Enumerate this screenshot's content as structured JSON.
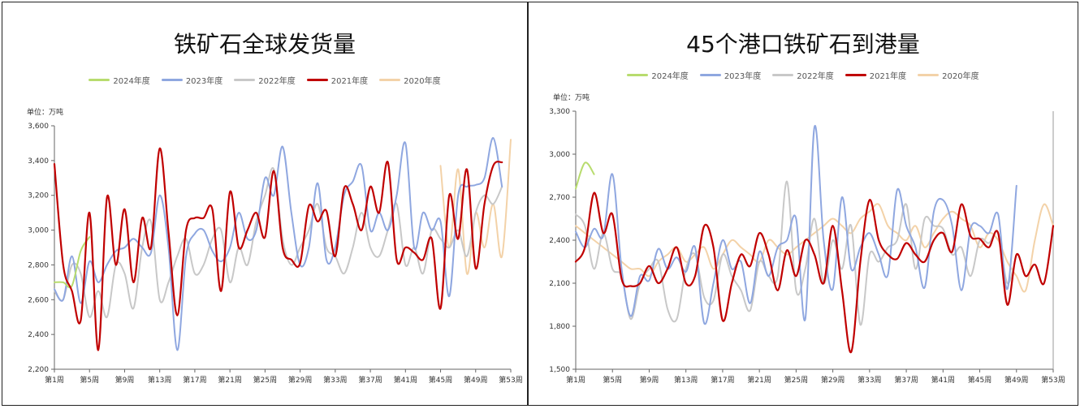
{
  "chart_data": [
    {
      "type": "line",
      "title": "铁矿石全球发货量",
      "unit_label": "单位：万吨",
      "ylim": [
        2200,
        3600
      ],
      "yticks": [
        "2,200",
        "2,400",
        "2,600",
        "2,800",
        "3,000",
        "3,200",
        "3,400",
        "3,600"
      ],
      "ytick_values": [
        2200,
        2400,
        2600,
        2800,
        3000,
        3200,
        3400,
        3600
      ],
      "xlim": [
        1,
        53
      ],
      "xticks": [
        "第1周",
        "第5周",
        "第9周",
        "第13周",
        "第17周",
        "第21周",
        "第25周",
        "第29周",
        "第33周",
        "第37周",
        "第41周",
        "第45周",
        "第49周",
        "第53周"
      ],
      "xtick_values": [
        1,
        5,
        9,
        13,
        17,
        21,
        25,
        29,
        33,
        37,
        41,
        45,
        49,
        53
      ],
      "legend_position": "top",
      "series": [
        {
          "name": "2024年度",
          "color": "#b8dc6e",
          "width": 2,
          "values": [
            2700,
            2700,
            2680,
            2880,
            2960
          ]
        },
        {
          "name": "2023年度",
          "color": "#8fa7e0",
          "width": 2,
          "values": [
            2660,
            2600,
            2850,
            2580,
            2820,
            2700,
            2800,
            2880,
            2900,
            2950,
            2900,
            2870,
            3200,
            2900,
            2310,
            2850,
            2980,
            3000,
            2880,
            2820,
            2900,
            3100,
            2950,
            3000,
            3300,
            3200,
            3480,
            3100,
            2800,
            2900,
            3270,
            2830,
            2900,
            3200,
            3280,
            3370,
            3000,
            3100,
            3000,
            3200,
            3500,
            2900,
            3100,
            3000,
            3050,
            2620,
            3200,
            3250,
            3260,
            3300,
            3530,
            3250
          ]
        },
        {
          "name": "2022年度",
          "color": "#c8c8c8",
          "width": 2,
          "values": [
            2650,
            2600,
            2800,
            2750,
            2500,
            2650,
            2500,
            2800,
            2750,
            2550,
            2900,
            3050,
            2600,
            2700,
            2850,
            2950,
            2750,
            2800,
            2950,
            3000,
            2700,
            2900,
            2800,
            3050,
            3200,
            3350,
            2950,
            2800,
            2900,
            3000,
            3150,
            2900,
            2850,
            2750,
            2900,
            3100,
            2900,
            2850,
            3000,
            3150,
            2800,
            2900,
            2750,
            3000,
            2950,
            2900,
            3000,
            2850,
            3100,
            3200,
            3150,
            3250
          ]
        },
        {
          "name": "2021年度",
          "color": "#c00000",
          "width": 2.2,
          "values": [
            3380,
            2800,
            2650,
            2480,
            3100,
            2310,
            3190,
            2800,
            3120,
            2700,
            3070,
            2900,
            3470,
            2990,
            2510,
            3000,
            3070,
            3070,
            3120,
            2650,
            3220,
            2900,
            3000,
            3100,
            2960,
            3340,
            2900,
            2830,
            2810,
            3140,
            3050,
            3110,
            2850,
            3240,
            3150,
            3000,
            3250,
            3100,
            3390,
            2830,
            2900,
            2870,
            2830,
            2950,
            2550,
            3200,
            2950,
            3350,
            2780,
            3150,
            3370,
            3390
          ]
        },
        {
          "name": "2020年度",
          "color": "#f3d2a8",
          "width": 2,
          "values": [
            null,
            null,
            null,
            null,
            null,
            null,
            null,
            null,
            null,
            null,
            null,
            null,
            null,
            null,
            null,
            null,
            null,
            null,
            null,
            null,
            null,
            null,
            null,
            null,
            null,
            null,
            null,
            null,
            null,
            null,
            null,
            null,
            null,
            null,
            null,
            null,
            null,
            null,
            null,
            null,
            null,
            null,
            null,
            null,
            3370,
            2900,
            3350,
            2750,
            3100,
            2900,
            3150,
            2850,
            3520
          ]
        }
      ]
    },
    {
      "type": "line",
      "title": "45个港口铁矿石到港量",
      "unit_label": "单位：万吨",
      "ylim": [
        1500,
        3300
      ],
      "yticks": [
        "1,500",
        "1,800",
        "2,100",
        "2,400",
        "2,700",
        "3,000",
        "3,300"
      ],
      "ytick_values": [
        1500,
        1800,
        2100,
        2400,
        2700,
        3000,
        3300
      ],
      "xlim": [
        1,
        53
      ],
      "xticks": [
        "第1周",
        "第5周",
        "第9周",
        "第13周",
        "第17周",
        "第21周",
        "第25周",
        "第29周",
        "第33周",
        "第37周",
        "第41周",
        "第45周",
        "第49周",
        "第53周"
      ],
      "xtick_values": [
        1,
        5,
        9,
        13,
        17,
        21,
        25,
        29,
        33,
        37,
        41,
        45,
        49,
        53
      ],
      "legend_position": "top",
      "series": [
        {
          "name": "2024年度",
          "color": "#b8dc6e",
          "width": 2,
          "values": [
            2760,
            2940,
            2860
          ]
        },
        {
          "name": "2023年度",
          "color": "#8fa7e0",
          "width": 2,
          "values": [
            2460,
            2350,
            2480,
            2430,
            2860,
            2200,
            1870,
            2150,
            2120,
            2340,
            2200,
            2280,
            2180,
            2350,
            1820,
            2100,
            2400,
            2200,
            2250,
            1960,
            2320,
            2150,
            2350,
            2400,
            2550,
            1850,
            3190,
            2400,
            2060,
            2700,
            2200,
            2350,
            2450,
            2300,
            2160,
            2750,
            2500,
            2350,
            2070,
            2600,
            2680,
            2500,
            2050,
            2480,
            2500,
            2450,
            2580,
            2060,
            2780
          ]
        },
        {
          "name": "2022年度",
          "color": "#c8c8c8",
          "width": 2,
          "values": [
            2580,
            2500,
            2200,
            2450,
            2200,
            2150,
            1850,
            2100,
            2200,
            2250,
            1920,
            1850,
            2200,
            2300,
            2000,
            1980,
            2300,
            2150,
            2050,
            1910,
            2250,
            2150,
            2150,
            2810,
            2050,
            2200,
            2550,
            2100,
            2400,
            2200,
            2500,
            1810,
            2300,
            2250,
            2350,
            2400,
            2650,
            2200,
            2550,
            2500,
            2480,
            2300,
            2350,
            2150,
            2400,
            2380,
            2450,
            2100,
            2300
          ]
        },
        {
          "name": "2021年度",
          "color": "#c00000",
          "width": 2.2,
          "values": [
            2250,
            2350,
            2730,
            2450,
            2580,
            2130,
            2080,
            2100,
            2220,
            2100,
            2200,
            2350,
            2100,
            2150,
            2500,
            2350,
            1840,
            2100,
            2300,
            2220,
            2450,
            2300,
            2050,
            2330,
            2150,
            2400,
            2300,
            2100,
            2500,
            2050,
            1620,
            2250,
            2680,
            2400,
            2300,
            2270,
            2380,
            2300,
            2250,
            2400,
            2450,
            2320,
            2650,
            2430,
            2410,
            2350,
            2450,
            1950,
            2300,
            2150,
            2230,
            2100,
            2500
          ]
        },
        {
          "name": "2020年度",
          "color": "#f3d2a8",
          "width": 2,
          "values": [
            2500,
            2450,
            2400,
            2350,
            2300,
            2250,
            2200,
            2200,
            2150,
            2250,
            2300,
            2350,
            2250,
            2300,
            2350,
            2200,
            2300,
            2400,
            2350,
            2300,
            2250,
            2400,
            2350,
            2300,
            2350,
            2400,
            2450,
            2500,
            2550,
            2500,
            2450,
            2550,
            2600,
            2650,
            2500,
            2450,
            2400,
            2500,
            2350,
            2450,
            2550,
            2600,
            2550,
            2500,
            2350,
            2450,
            2400,
            2250,
            2150,
            2050,
            2400,
            2650,
            2500
          ]
        }
      ]
    }
  ]
}
